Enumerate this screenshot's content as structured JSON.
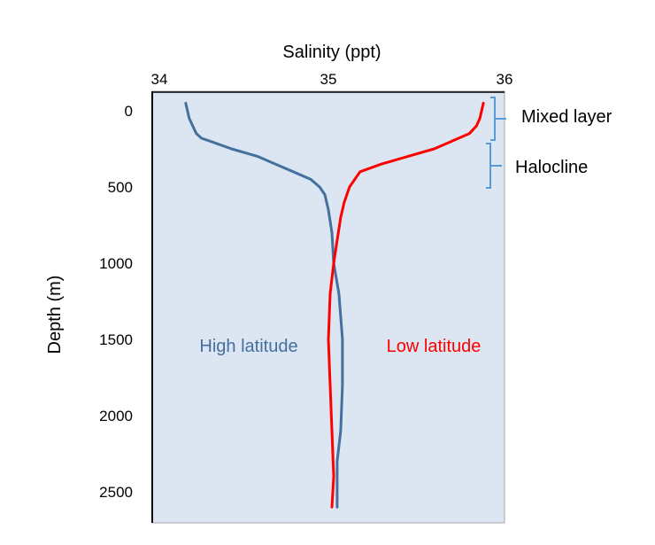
{
  "chart_data": {
    "type": "line",
    "xlabel": "Salinity (ppt)",
    "ylabel": "Depth (m)",
    "xlim": [
      34,
      36
    ],
    "ylim": [
      2600,
      0
    ],
    "x_ticks": [
      "34",
      "35",
      "36"
    ],
    "y_ticks": [
      "0",
      "500",
      "1000",
      "1500",
      "2000",
      "2500"
    ],
    "grid": false,
    "colors": {
      "plot_bg": "#dce6f2",
      "high": "#44709e",
      "low": "#ff0000",
      "bracket": "#5b9bd5"
    },
    "series": [
      {
        "name": "High latitude",
        "color": "#44709e",
        "points": [
          [
            34.19,
            -50
          ],
          [
            34.2,
            0
          ],
          [
            34.21,
            50
          ],
          [
            34.23,
            100
          ],
          [
            34.25,
            150
          ],
          [
            34.28,
            180
          ],
          [
            34.33,
            200
          ],
          [
            34.45,
            250
          ],
          [
            34.6,
            300
          ],
          [
            34.7,
            350
          ],
          [
            34.8,
            400
          ],
          [
            34.9,
            450
          ],
          [
            34.95,
            500
          ],
          [
            34.98,
            550
          ],
          [
            35.0,
            650
          ],
          [
            35.02,
            800
          ],
          [
            35.03,
            1000
          ],
          [
            35.06,
            1200
          ],
          [
            35.08,
            1500
          ],
          [
            35.08,
            1800
          ],
          [
            35.07,
            2100
          ],
          [
            35.05,
            2300
          ],
          [
            35.05,
            2600
          ]
        ]
      },
      {
        "name": "Low latitude",
        "color": "#ff0000",
        "points": [
          [
            35.88,
            -50
          ],
          [
            35.87,
            0
          ],
          [
            35.86,
            50
          ],
          [
            35.84,
            100
          ],
          [
            35.8,
            150
          ],
          [
            35.7,
            200
          ],
          [
            35.6,
            250
          ],
          [
            35.45,
            300
          ],
          [
            35.3,
            350
          ],
          [
            35.18,
            400
          ],
          [
            35.15,
            450
          ],
          [
            35.12,
            500
          ],
          [
            35.09,
            600
          ],
          [
            35.07,
            700
          ],
          [
            35.05,
            850
          ],
          [
            35.03,
            1000
          ],
          [
            35.01,
            1200
          ],
          [
            35.0,
            1500
          ],
          [
            35.01,
            1800
          ],
          [
            35.02,
            2100
          ],
          [
            35.03,
            2400
          ],
          [
            35.02,
            2600
          ]
        ]
      }
    ],
    "annotations": {
      "mixed_layer": {
        "text": "Mixed layer",
        "depth_range": [
          0,
          200
        ]
      },
      "halocline": {
        "text": "Halocline",
        "depth_range": [
          220,
          500
        ]
      }
    }
  }
}
